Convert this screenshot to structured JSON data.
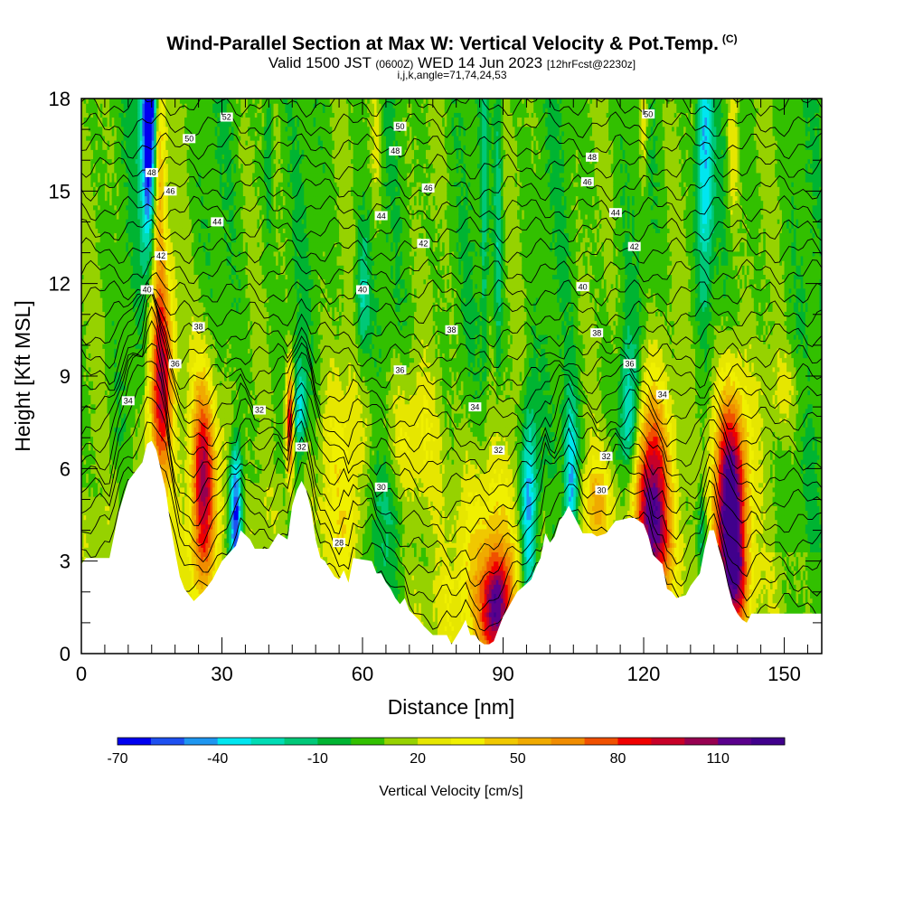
{
  "header": {
    "title": "Wind-Parallel Section at Max W: Vertical Velocity & Pot.Temp.",
    "title_suffix": "(C)",
    "valid_prefix": "Valid 1500 JST",
    "valid_zulu": "(0600Z)",
    "valid_date": "WED 14 Jun 2023",
    "forecast": "[12hrFcst@2230z]",
    "indices": "i,j,k,angle=71,74,24,53"
  },
  "chart_data": {
    "type": "heatmap",
    "title": "Wind-Parallel Section at Max W: Vertical Velocity & Pot.Temp.",
    "xlabel": "Distance [nm]",
    "ylabel": "Height [Kft MSL]",
    "xlim": [
      0,
      158
    ],
    "ylim": [
      0,
      18
    ],
    "xticks": [
      0,
      30,
      60,
      90,
      120,
      150
    ],
    "yticks": [
      0,
      3,
      6,
      9,
      12,
      15,
      18
    ],
    "colorbar": {
      "label": "Vertical Velocity [cm/s]",
      "tick_labels": [
        "-70",
        "-40",
        "-10",
        "20",
        "50",
        "80",
        "110"
      ],
      "tick_values": [
        -70,
        -40,
        -10,
        20,
        50,
        80,
        110
      ],
      "range": [
        -70,
        130
      ],
      "colors": [
        "#0000f0",
        "#1e50f0",
        "#1e96f0",
        "#00e6f0",
        "#00dcb4",
        "#00c878",
        "#00b432",
        "#32c000",
        "#96d200",
        "#e6e600",
        "#f0f000",
        "#f0c800",
        "#f0aa00",
        "#f08c00",
        "#f05000",
        "#f00000",
        "#c80028",
        "#960050",
        "#5a008c",
        "#40008c"
      ]
    },
    "terrain": {
      "x": [
        0,
        1,
        3,
        6,
        8,
        10,
        11,
        13,
        14,
        15,
        16,
        18,
        19,
        20,
        21,
        22,
        24,
        26,
        28,
        30,
        33,
        34,
        36,
        37,
        40,
        42,
        44,
        45,
        46,
        47,
        48,
        49,
        50,
        51,
        52,
        54,
        55,
        56,
        57,
        58,
        62,
        63,
        64,
        65,
        66,
        67,
        68,
        69,
        70,
        72,
        73,
        75,
        77,
        78,
        79,
        81,
        82,
        83,
        84,
        85,
        86,
        87,
        88,
        90,
        93,
        96,
        97,
        98,
        99,
        100,
        101,
        102,
        103,
        104,
        105,
        106,
        107,
        109,
        110,
        112,
        114,
        117,
        118,
        120,
        121,
        122,
        124,
        125,
        126,
        127,
        129,
        130,
        132,
        133,
        134,
        135,
        136,
        137,
        138,
        139,
        140,
        141,
        142,
        143,
        144,
        146,
        158
      ],
      "height_kft": [
        2.9,
        3.1,
        3.1,
        3.1,
        4.6,
        5.6,
        5.8,
        6.2,
        6.8,
        6.9,
        6.6,
        5.3,
        4.2,
        3.3,
        2.5,
        2.1,
        1.7,
        2.0,
        2.4,
        3.0,
        3.5,
        4.0,
        3.7,
        3.4,
        3.4,
        3.9,
        3.7,
        4.8,
        5.3,
        5.6,
        5.3,
        4.7,
        3.7,
        3.1,
        3.0,
        2.5,
        2.4,
        2.7,
        2.3,
        3.1,
        3.0,
        2.6,
        2.6,
        2.3,
        2.1,
        1.8,
        1.6,
        1.8,
        1.4,
        1.1,
        0.9,
        0.6,
        0.6,
        0.6,
        0.3,
        0.8,
        1.1,
        0.6,
        0.6,
        0.4,
        0.3,
        0.3,
        0.4,
        1.2,
        2.0,
        2.4,
        2.8,
        3.1,
        3.9,
        3.6,
        3.8,
        4.3,
        4.5,
        4.8,
        4.5,
        4.2,
        3.9,
        3.9,
        3.8,
        3.9,
        4.3,
        4.4,
        4.4,
        4.2,
        3.8,
        3.2,
        2.9,
        2.1,
        2.0,
        1.8,
        1.9,
        2.2,
        2.6,
        3.4,
        4.0,
        4.0,
        3.4,
        2.9,
        2.2,
        1.6,
        1.3,
        1.1,
        1.0,
        1.3,
        1.3,
        1.3,
        1.3
      ]
    },
    "velocity_features": [
      {
        "x": 14.5,
        "z": 17.5,
        "sx": 1.2,
        "sz": 3.0,
        "w": -100
      },
      {
        "x": 16.5,
        "z": 16.0,
        "sx": 1.0,
        "sz": 2.5,
        "w": 55
      },
      {
        "x": 17.0,
        "z": 9.0,
        "sx": 1.8,
        "sz": 2.6,
        "w": 90
      },
      {
        "x": 26.0,
        "z": 5.5,
        "sx": 1.9,
        "sz": 2.6,
        "w": 95
      },
      {
        "x": 33.0,
        "z": 4.6,
        "sx": 1.0,
        "sz": 1.6,
        "w": -85
      },
      {
        "x": 31.0,
        "z": 6.0,
        "sx": 2.5,
        "sz": 2.0,
        "w": 20
      },
      {
        "x": 44.5,
        "z": 7.5,
        "sx": 0.6,
        "sz": 1.2,
        "w": 95
      },
      {
        "x": 46.5,
        "z": 7.8,
        "sx": 1.0,
        "sz": 1.2,
        "w": -40
      },
      {
        "x": 56.0,
        "z": 5.6,
        "sx": 5.0,
        "sz": 2.5,
        "w": 25
      },
      {
        "x": 63.0,
        "z": 4.5,
        "sx": 3.0,
        "sz": 2.5,
        "w": -25
      },
      {
        "x": 60.0,
        "z": 11.5,
        "sx": 1.0,
        "sz": 1.5,
        "w": -30
      },
      {
        "x": 69.0,
        "z": 7.0,
        "sx": 5.0,
        "sz": 1.6,
        "w": 25
      },
      {
        "x": 86.0,
        "z": 2.6,
        "sx": 5.0,
        "sz": 2.8,
        "w": 45
      },
      {
        "x": 88.5,
        "z": 1.5,
        "sx": 2.0,
        "sz": 1.2,
        "w": 75
      },
      {
        "x": 95.5,
        "z": 4.5,
        "sx": 1.2,
        "sz": 2.5,
        "w": -60
      },
      {
        "x": 104.5,
        "z": 5.5,
        "sx": 1.0,
        "sz": 1.8,
        "w": -55
      },
      {
        "x": 110.0,
        "z": 4.8,
        "sx": 2.2,
        "sz": 1.2,
        "w": 35
      },
      {
        "x": 117.0,
        "z": 7.5,
        "sx": 1.5,
        "sz": 1.8,
        "w": -45
      },
      {
        "x": 121.5,
        "z": 5.5,
        "sx": 2.8,
        "sz": 2.4,
        "w": 90
      },
      {
        "x": 122.5,
        "z": 3.5,
        "sx": 2.5,
        "sz": 1.6,
        "w": 45
      },
      {
        "x": 132.5,
        "z": 3.8,
        "sx": 0.9,
        "sz": 1.0,
        "w": -35
      },
      {
        "x": 138.5,
        "z": 4.9,
        "sx": 2.6,
        "sz": 2.6,
        "w": 130
      },
      {
        "x": 139.5,
        "z": 2.2,
        "sx": 2.0,
        "sz": 1.2,
        "w": 40
      },
      {
        "x": 133.0,
        "z": 16.0,
        "sx": 1.2,
        "sz": 3.0,
        "w": -50
      },
      {
        "x": 139.0,
        "z": 16.5,
        "sx": 0.8,
        "sz": 2.5,
        "w": 25
      },
      {
        "x": 89.0,
        "z": 14.5,
        "sx": 0.6,
        "sz": 4.0,
        "w": -25
      },
      {
        "x": 86.0,
        "z": 14.5,
        "sx": 0.5,
        "sz": 4.0,
        "w": -20
      },
      {
        "x": 63.0,
        "z": 17.0,
        "sx": 0.8,
        "sz": 2.0,
        "w": 20
      },
      {
        "x": 120.0,
        "z": 17.5,
        "sx": 0.6,
        "sz": 1.5,
        "w": 30
      },
      {
        "x": 150.0,
        "z": 8.5,
        "sx": 3.0,
        "sz": 1.0,
        "w": 15
      },
      {
        "x": 40.0,
        "z": 16.5,
        "sx": 0.6,
        "sz": 2.0,
        "w": -20
      }
    ],
    "isentrope_labels": [
      {
        "x": 31,
        "y": 17.4,
        "text": "52"
      },
      {
        "x": 23,
        "y": 16.7,
        "text": "50"
      },
      {
        "x": 68,
        "y": 17.1,
        "text": "50"
      },
      {
        "x": 121,
        "y": 17.5,
        "text": "50"
      },
      {
        "x": 15,
        "y": 15.6,
        "text": "48"
      },
      {
        "x": 67,
        "y": 16.3,
        "text": "48"
      },
      {
        "x": 109,
        "y": 16.1,
        "text": "48"
      },
      {
        "x": 19,
        "y": 15.0,
        "text": "46"
      },
      {
        "x": 74,
        "y": 15.1,
        "text": "46"
      },
      {
        "x": 108,
        "y": 15.3,
        "text": "46"
      },
      {
        "x": 29,
        "y": 14.0,
        "text": "44"
      },
      {
        "x": 64,
        "y": 14.2,
        "text": "44"
      },
      {
        "x": 114,
        "y": 14.3,
        "text": "44"
      },
      {
        "x": 17,
        "y": 12.9,
        "text": "42"
      },
      {
        "x": 73,
        "y": 13.3,
        "text": "42"
      },
      {
        "x": 118,
        "y": 13.2,
        "text": "42"
      },
      {
        "x": 14,
        "y": 11.8,
        "text": "40"
      },
      {
        "x": 60,
        "y": 11.8,
        "text": "40"
      },
      {
        "x": 107,
        "y": 11.9,
        "text": "40"
      },
      {
        "x": 25,
        "y": 10.6,
        "text": "38"
      },
      {
        "x": 79,
        "y": 10.5,
        "text": "38"
      },
      {
        "x": 110,
        "y": 10.4,
        "text": "38"
      },
      {
        "x": 20,
        "y": 9.4,
        "text": "36"
      },
      {
        "x": 68,
        "y": 9.2,
        "text": "36"
      },
      {
        "x": 117,
        "y": 9.4,
        "text": "36"
      },
      {
        "x": 10,
        "y": 8.2,
        "text": "34"
      },
      {
        "x": 84,
        "y": 8.0,
        "text": "34"
      },
      {
        "x": 124,
        "y": 8.4,
        "text": "34"
      },
      {
        "x": 38,
        "y": 7.9,
        "text": "32"
      },
      {
        "x": 47,
        "y": 6.7,
        "text": "32"
      },
      {
        "x": 89,
        "y": 6.6,
        "text": "32"
      },
      {
        "x": 112,
        "y": 6.4,
        "text": "32"
      },
      {
        "x": 64,
        "y": 5.4,
        "text": "30"
      },
      {
        "x": 111,
        "y": 5.3,
        "text": "30"
      },
      {
        "x": 55,
        "y": 3.6,
        "text": "28"
      }
    ]
  }
}
